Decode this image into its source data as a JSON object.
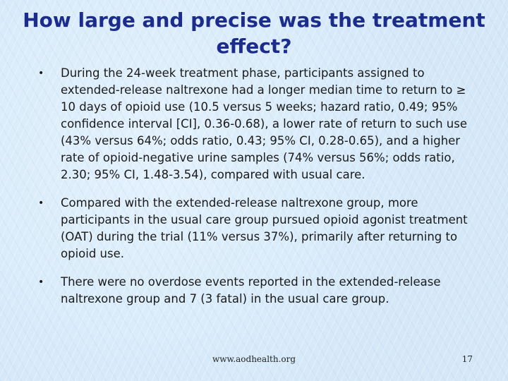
{
  "slide": {
    "title": "How large and precise was the treatment effect?",
    "bullet_symbol": "•",
    "bullets": [
      {
        "text": "During the 24-week treatment phase, participants assigned to extended-release naltrexone had a longer median time to return to ≥ 10 days of opioid use (10.5 versus 5 weeks; hazard ratio, 0.49; 95% confidence interval [CI], 0.36-0.68), a lower rate of return to such use (43% versus 64%; odds ratio, 0.43; 95% CI, 0.28-0.65), and a higher rate of opioid-negative urine samples (74% versus 56%; odds ratio, 2.30; 95% CI, 1.48-3.54), compared with usual care."
      },
      {
        "text": "Compared with the extended-release naltrexone group, more participants in the usual care group pursued opioid agonist treatment (OAT) during the trial (11% versus 37%), primarily after returning to opioid use."
      },
      {
        "text": "There were no overdose events reported in the extended-release naltrexone group and 7 (3 fatal) in the usual care group."
      }
    ],
    "footer": {
      "url": "www.aodhealth.org",
      "page_number": "17"
    }
  }
}
